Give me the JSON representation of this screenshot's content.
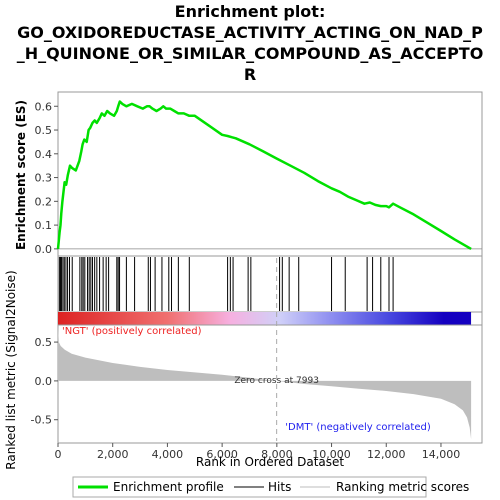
{
  "chart_data": {
    "type": "line",
    "title_lines": [
      "Enrichment plot:",
      "GO_OXIDOREDUCTASE_ACTIVITY_ACTING_ON_NAD_P",
      "_H_QUINONE_OR_SIMILAR_COMPOUND_AS_ACCEPTO",
      "R"
    ],
    "xlabel": "Rank in Ordered Dataset",
    "x_ticks": [
      0,
      2000,
      4000,
      6000,
      8000,
      10000,
      12000,
      14000
    ],
    "x_tick_labels": [
      "0",
      "2,000",
      "4,000",
      "6,000",
      "8,000",
      "10,000",
      "12,000",
      "14,000"
    ],
    "xlim": [
      0,
      15500
    ],
    "n_genes": 15100,
    "es_panel": {
      "ylabel": "Enrichment score (ES)",
      "ylim": [
        -0.03,
        0.66
      ],
      "y_ticks": [
        0.0,
        0.1,
        0.2,
        0.3,
        0.4,
        0.5,
        0.6
      ],
      "y_tick_labels": [
        "0.0",
        "0.1",
        "0.2",
        "0.3",
        "0.4",
        "0.5",
        "0.6"
      ],
      "series": [
        {
          "name": "Enrichment profile",
          "color": "#00e000",
          "x": [
            0,
            60,
            90,
            120,
            160,
            200,
            240,
            300,
            360,
            440,
            520,
            650,
            780,
            850,
            900,
            960,
            1050,
            1120,
            1180,
            1260,
            1340,
            1420,
            1520,
            1600,
            1700,
            1800,
            1900,
            2050,
            2150,
            2200,
            2260,
            2350,
            2500,
            2700,
            2900,
            3100,
            3250,
            3350,
            3450,
            3600,
            3750,
            3850,
            3950,
            4100,
            4250,
            4400,
            4600,
            4800,
            5000,
            5500,
            6000,
            6200,
            6350,
            6500,
            7000,
            7500,
            8000,
            8500,
            9000,
            9500,
            10000,
            10300,
            10600,
            10900,
            11200,
            11400,
            11600,
            11800,
            12000,
            12100,
            12250,
            12500,
            13000,
            13500,
            14000,
            14500,
            15100
          ],
          "y": [
            0.0,
            0.07,
            0.1,
            0.15,
            0.2,
            0.24,
            0.28,
            0.27,
            0.31,
            0.35,
            0.34,
            0.33,
            0.37,
            0.41,
            0.44,
            0.46,
            0.45,
            0.5,
            0.51,
            0.53,
            0.54,
            0.53,
            0.55,
            0.57,
            0.56,
            0.58,
            0.57,
            0.56,
            0.58,
            0.6,
            0.62,
            0.61,
            0.6,
            0.61,
            0.6,
            0.59,
            0.6,
            0.6,
            0.59,
            0.58,
            0.59,
            0.6,
            0.59,
            0.59,
            0.58,
            0.57,
            0.57,
            0.56,
            0.56,
            0.52,
            0.48,
            0.475,
            0.47,
            0.465,
            0.44,
            0.41,
            0.38,
            0.35,
            0.32,
            0.285,
            0.255,
            0.24,
            0.22,
            0.205,
            0.19,
            0.195,
            0.185,
            0.18,
            0.18,
            0.175,
            0.19,
            0.175,
            0.145,
            0.11,
            0.075,
            0.04,
            0.0
          ]
        }
      ]
    },
    "hits": [
      50,
      90,
      130,
      180,
      230,
      290,
      350,
      420,
      520,
      800,
      870,
      920,
      980,
      1080,
      1140,
      1200,
      1260,
      1340,
      1420,
      1520,
      1650,
      1760,
      1850,
      2150,
      2200,
      2250,
      2500,
      2800,
      3300,
      3380,
      3550,
      3800,
      4050,
      4150,
      4400,
      4800,
      6200,
      6300,
      6400,
      6950,
      7050,
      8100,
      8200,
      8450,
      8800,
      10000,
      10500,
      11300,
      11500,
      11800,
      12100,
      12250
    ],
    "ranking_bar": {
      "stops": [
        "#dd2222",
        "#f07070",
        "#f6b0e0",
        "#d0d0f8",
        "#8e8ef0",
        "#4848e0",
        "#1400c0"
      ],
      "stop_ranks": [
        0,
        4000,
        6300,
        8100,
        10000,
        12100,
        14100
      ]
    },
    "metric_panel": {
      "ylabel": "Ranked list metric (Signal2Noise)",
      "ylim": [
        -0.8,
        0.72
      ],
      "y_ticks": [
        -0.5,
        0.0,
        0.5
      ],
      "y_tick_labels": [
        "-0.5",
        "0.0",
        "0.5"
      ],
      "x": [
        0,
        30,
        100,
        250,
        500,
        1000,
        2000,
        3000,
        4000,
        5000,
        6000,
        7000,
        7993,
        9000,
        10000,
        11000,
        12000,
        13000,
        14000,
        14500,
        14800,
        14950,
        15050,
        15100
      ],
      "y": [
        0.72,
        0.5,
        0.45,
        0.4,
        0.35,
        0.3,
        0.23,
        0.18,
        0.14,
        0.11,
        0.08,
        0.04,
        0.0,
        -0.04,
        -0.07,
        -0.1,
        -0.13,
        -0.17,
        -0.23,
        -0.3,
        -0.38,
        -0.47,
        -0.6,
        -0.75
      ],
      "fill_color": "#bebebe",
      "zero_cross_rank": 7993,
      "zero_cross_label": "Zero cross at 7993",
      "pos_label": "'NGT' (positively correlated)",
      "neg_label": "'DMT' (negatively correlated)",
      "pos_color": "#ee2222",
      "neg_color": "#2222ee"
    },
    "legend": {
      "position": "bottom",
      "items": [
        {
          "label": "Enrichment profile",
          "color": "#00e000",
          "style": "thick-line"
        },
        {
          "label": "Hits",
          "color": "#000000",
          "style": "line"
        },
        {
          "label": "Ranking metric scores",
          "color": "#bebebe",
          "style": "line"
        }
      ]
    }
  }
}
